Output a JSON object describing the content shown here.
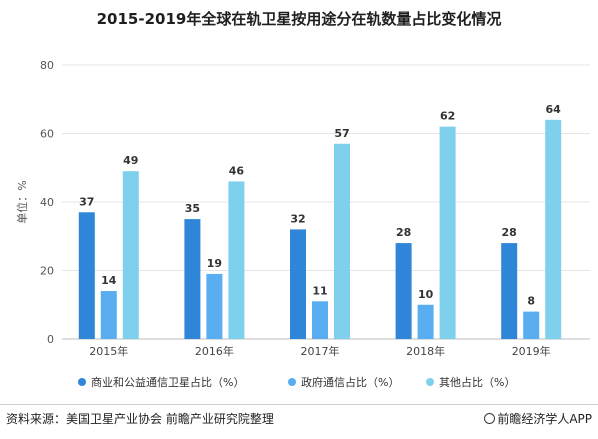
{
  "chart_data": {
    "type": "bar",
    "title": "2015-2019年全球在轨卫星按用途分在轨数量占比变化情况",
    "ylabel": "单位：%",
    "xlabel": "",
    "ylim": [
      0,
      80
    ],
    "yticks": [
      0,
      20,
      40,
      60,
      80
    ],
    "grid": true,
    "legend_position": "bottom",
    "categories": [
      "2015年",
      "2016年",
      "2017年",
      "2018年",
      "2019年"
    ],
    "series": [
      {
        "name": "商业和公益通信卫星占比（%）",
        "color": "#2f86d9",
        "values": [
          37,
          35,
          32,
          28,
          28
        ]
      },
      {
        "name": "政府通信占比（%）",
        "color": "#58aef0",
        "values": [
          14,
          19,
          11,
          10,
          8
        ]
      },
      {
        "name": "其他占比（%）",
        "color": "#7fd0ec",
        "values": [
          49,
          46,
          57,
          62,
          64
        ]
      }
    ]
  },
  "footer": {
    "source": "资料来源：美国卫星产业协会 前瞻产业研究院整理",
    "brand": "前瞻经济学人APP"
  }
}
